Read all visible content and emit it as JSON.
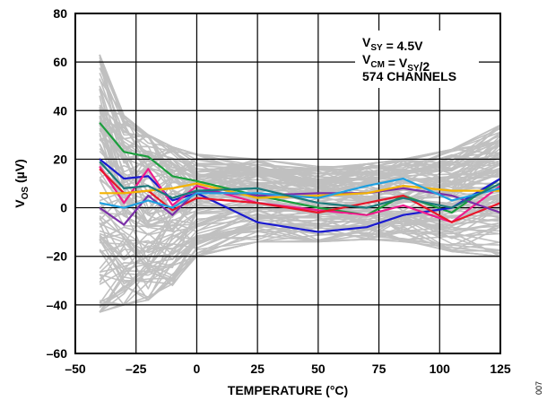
{
  "chart_data": {
    "type": "line",
    "title": "",
    "xlabel": "TEMPERATURE (°C)",
    "ylabel": {
      "main": "V",
      "sub": "OS",
      "unit": " (µV)"
    },
    "xlim": [
      -50,
      125
    ],
    "ylim": [
      -60,
      80
    ],
    "xticks": [
      -50,
      -25,
      0,
      25,
      50,
      75,
      100,
      125
    ],
    "yticks": [
      -60,
      -40,
      -20,
      0,
      20,
      40,
      60,
      80
    ],
    "xtick_labels": [
      "–50",
      "–25",
      "0",
      "25",
      "50",
      "75",
      "100",
      "125"
    ],
    "ytick_labels": [
      "–60",
      "–40",
      "–20",
      "0",
      "20",
      "40",
      "60",
      "80"
    ],
    "grid": true,
    "annotation": [
      {
        "parts": [
          {
            "t": "V"
          },
          {
            "t": "SY",
            "sub": true
          },
          {
            "t": " = 4.5V"
          }
        ]
      },
      {
        "parts": [
          {
            "t": "V"
          },
          {
            "t": "CM",
            "sub": true
          },
          {
            "t": " = V"
          },
          {
            "t": "SY",
            "sub": true
          },
          {
            "t": "/2"
          }
        ]
      },
      {
        "parts": [
          {
            "t": "574 CHANNELS"
          }
        ]
      }
    ],
    "figure_id": "007",
    "x": [
      -40,
      -30,
      -20,
      -10,
      0,
      25,
      50,
      70,
      85,
      105,
      125
    ],
    "background_envelope": {
      "color": "#c0c0c0",
      "upper": [
        63,
        38,
        30,
        25,
        22,
        20,
        17,
        18,
        20,
        24,
        34
      ],
      "lower": [
        -43,
        -40,
        -38,
        -32,
        -20,
        -14,
        -14,
        -13,
        -14,
        -18,
        -20
      ],
      "note_count": 574
    },
    "series": [
      {
        "color": "#1a9e3c",
        "values": [
          35,
          23,
          21,
          13,
          11,
          5,
          0,
          -3,
          5,
          -2,
          12
        ]
      },
      {
        "color": "#1a1ad0",
        "values": [
          20,
          12,
          13,
          3,
          6,
          -6,
          -10,
          -8,
          -3,
          0,
          12
        ]
      },
      {
        "color": "#ee1c8c",
        "values": [
          17,
          2,
          16,
          1,
          9,
          2,
          -1,
          -3,
          1,
          -6,
          9
        ]
      },
      {
        "color": "#e8172a",
        "values": [
          16,
          6,
          7,
          -1,
          4,
          2,
          -2,
          2,
          5,
          -6,
          2
        ]
      },
      {
        "color": "#7b2fa8",
        "values": [
          0,
          -7,
          5,
          -3,
          7,
          5,
          6,
          6,
          8,
          5,
          -2
        ]
      },
      {
        "color": "#f4b300",
        "values": [
          6,
          6,
          7,
          8,
          10,
          4,
          5,
          6,
          9,
          7,
          7
        ]
      },
      {
        "color": "#1fa0e0",
        "values": [
          2,
          0,
          3,
          0,
          6,
          6,
          4,
          9,
          12,
          3,
          8
        ]
      },
      {
        "color": "#1a7a7a",
        "values": [
          19,
          8,
          9,
          4,
          7,
          8,
          2,
          0,
          4,
          0,
          10
        ]
      }
    ]
  }
}
